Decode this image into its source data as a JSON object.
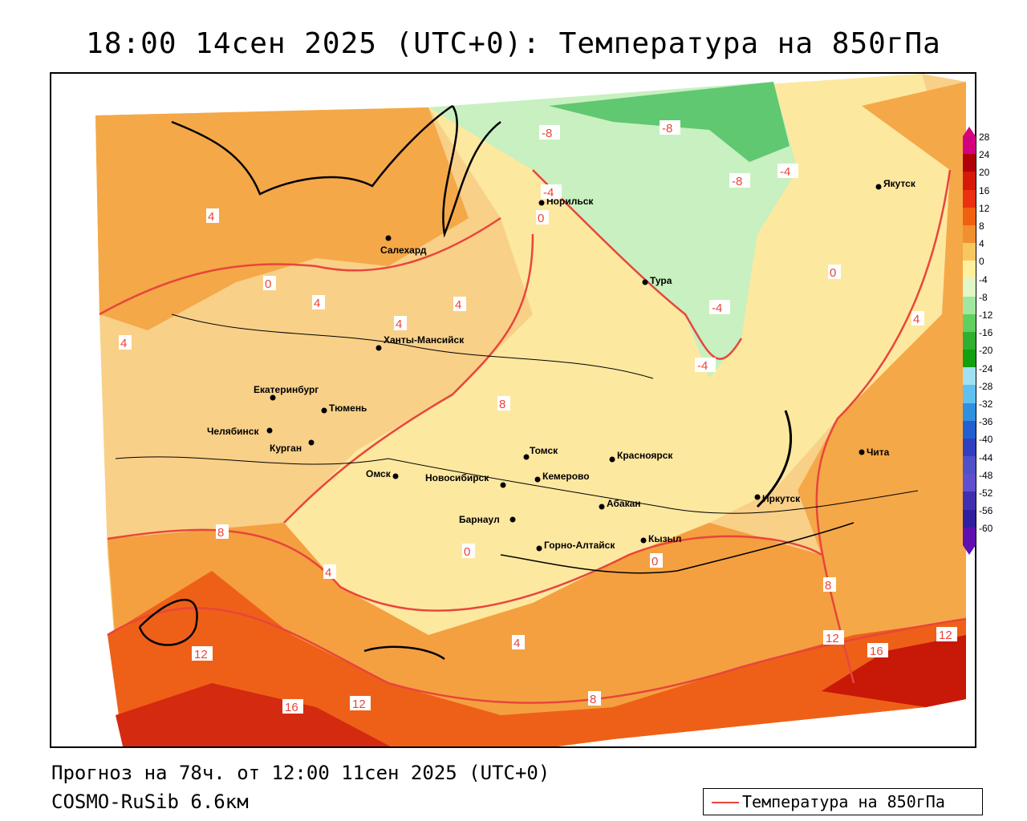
{
  "title": "18:00 14сен 2025 (UTC+0): Температура на 850гПа",
  "forecast": "Прогноз на 78ч. от 12:00 11сен 2025 (UTC+0)",
  "model": "COSMO-RuSib 6.6км",
  "legend": {
    "label": "Температура на 850гПа",
    "color": "#e8453c"
  },
  "colorbar": {
    "ticks": [
      "28",
      "24",
      "20",
      "16",
      "12",
      "8",
      "4",
      "0",
      "-4",
      "-8",
      "-12",
      "-16",
      "-20",
      "-24",
      "-28",
      "-32",
      "-36",
      "-40",
      "-44",
      "-48",
      "-52",
      "-56",
      "-60"
    ],
    "colors": [
      "#d40080",
      "#b0000a",
      "#d81808",
      "#ec3010",
      "#f06010",
      "#f09030",
      "#f8c860",
      "#fff0a0",
      "#e0f8c8",
      "#a0e8a0",
      "#60d060",
      "#30b030",
      "#10a010",
      "#a0e0f0",
      "#60c0f0",
      "#3090e0",
      "#2060d0",
      "#3040c0",
      "#5050c8",
      "#6050d0",
      "#4030b0",
      "#3020a0",
      "#6010b0"
    ]
  },
  "cities": [
    {
      "name": "Норильск"
    },
    {
      "name": "Якутск"
    },
    {
      "name": "Салехард"
    },
    {
      "name": "Тура"
    },
    {
      "name": "Ханты-Мансийск"
    },
    {
      "name": "Екатеринбург"
    },
    {
      "name": "Тюмень"
    },
    {
      "name": "Челябинск"
    },
    {
      "name": "Курган"
    },
    {
      "name": "Омск"
    },
    {
      "name": "Новосибирск"
    },
    {
      "name": "Томск"
    },
    {
      "name": "Кемерово"
    },
    {
      "name": "Красноярск"
    },
    {
      "name": "Абакан"
    },
    {
      "name": "Барнаул"
    },
    {
      "name": "Горно-Алтайск"
    },
    {
      "name": "Кызыл"
    },
    {
      "name": "Иркутск"
    },
    {
      "name": "Чита"
    }
  ],
  "isotherm_labels": [
    "-8",
    "-8",
    "-8",
    "-4",
    "-4",
    "-4",
    "-4",
    "0",
    "0",
    "0",
    "0",
    "0",
    "4",
    "4",
    "4",
    "4",
    "4",
    "4",
    "4",
    "4",
    "8",
    "8",
    "8",
    "8",
    "12",
    "12",
    "12",
    "12",
    "16",
    "16"
  ]
}
